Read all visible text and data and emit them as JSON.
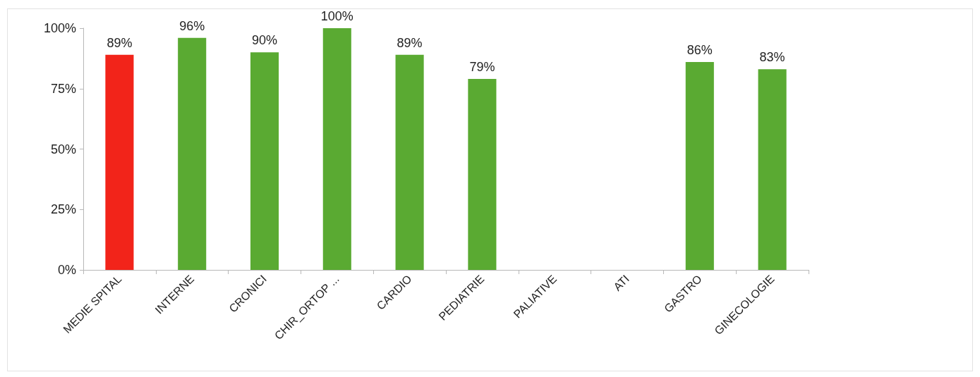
{
  "chart_data": {
    "type": "bar",
    "categories": [
      "MEDIE SPITAL",
      "INTERNE",
      "CRONICI",
      "CHIR_ORTOP ...",
      "CARDIO",
      "PEDIATRIE",
      "PALIATIVE",
      "ATI",
      "GASTRO",
      "GINECOLOGIE"
    ],
    "values": [
      89,
      96,
      90,
      100,
      89,
      79,
      null,
      null,
      86,
      83
    ],
    "colors": [
      "#f2241a",
      "#5aaa32",
      "#5aaa32",
      "#5aaa32",
      "#5aaa32",
      "#5aaa32",
      "#5aaa32",
      "#5aaa32",
      "#5aaa32",
      "#5aaa32"
    ],
    "value_labels": [
      "89%",
      "96%",
      "90%",
      "100%",
      "89%",
      "79%",
      null,
      null,
      "86%",
      "83%"
    ],
    "ylim": [
      0,
      100
    ],
    "yticks": [
      {
        "value": 0,
        "label": "0%"
      },
      {
        "value": 25,
        "label": "25%"
      },
      {
        "value": 50,
        "label": "50%"
      },
      {
        "value": 75,
        "label": "75%"
      },
      {
        "value": 100,
        "label": "100%"
      }
    ],
    "grid": false
  }
}
